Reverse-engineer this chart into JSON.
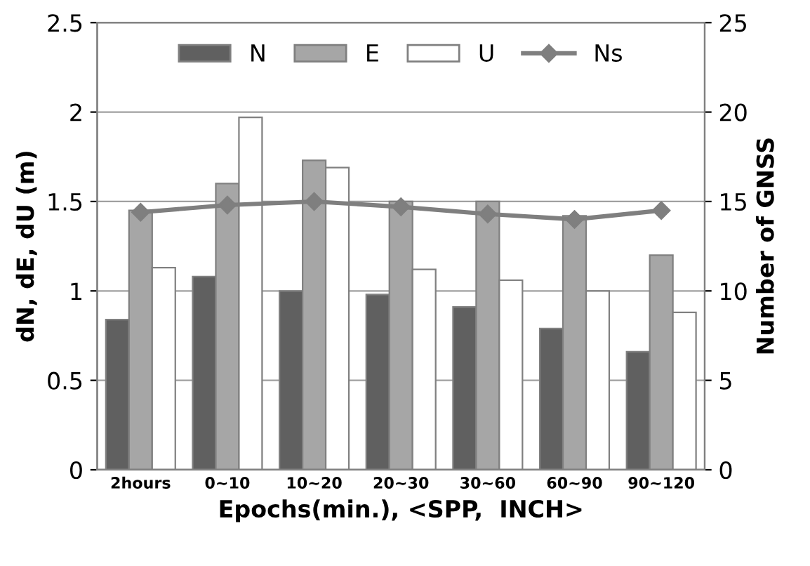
{
  "chart_data": {
    "type": "bar",
    "xlabel": "Epochs(min.), <SPP,  INCH>",
    "ylabel": "dN, dE, dU (m)",
    "y2label": "Number of GNSS",
    "categories": [
      "2hours",
      "0~10",
      "10~20",
      "20~30",
      "30~60",
      "60~90",
      "90~120"
    ],
    "series": [
      {
        "name": "N",
        "color": "#606060",
        "values": [
          0.84,
          1.08,
          1.0,
          0.98,
          0.91,
          0.79,
          0.66
        ]
      },
      {
        "name": "E",
        "color": "#a6a6a6",
        "values": [
          1.45,
          1.6,
          1.73,
          1.5,
          1.5,
          1.42,
          1.2
        ]
      },
      {
        "name": "U",
        "color": "#ffffff",
        "values": [
          1.13,
          1.97,
          1.69,
          1.12,
          1.06,
          1.0,
          0.88
        ]
      },
      {
        "name": "Ns",
        "color": "#7f7f7f",
        "type": "line",
        "axis": "y2",
        "marker": "diamond",
        "values": [
          14.4,
          14.8,
          15.0,
          14.7,
          14.3,
          14.0,
          14.5
        ]
      }
    ],
    "ylim": [
      0,
      2.5
    ],
    "yticks": [
      0,
      0.5,
      1,
      1.5,
      2,
      2.5
    ],
    "y2lim": [
      0,
      25
    ],
    "y2ticks": [
      0,
      5,
      10,
      15,
      20,
      25
    ],
    "grid": "y",
    "legend": "top"
  }
}
